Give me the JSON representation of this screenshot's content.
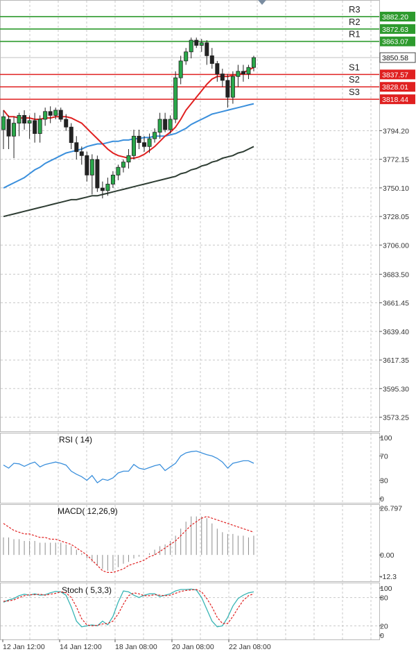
{
  "chart_data": [
    {
      "type": "candlestick",
      "panel": "price",
      "ylim": [
        3562.3,
        3895.0
      ],
      "y_ticks": [
        "3794.20",
        "3772.15",
        "3750.10",
        "3728.05",
        "3706.00",
        "3683.50",
        "3661.45",
        "3639.40",
        "3617.35",
        "3595.30",
        "3573.25"
      ],
      "x_ticks": [
        "12 Jan 12:00",
        "14 Jan 12:00",
        "18 Jan 08:00",
        "20 Jan 08:00",
        "22 Jan 08:00"
      ],
      "current_price": "3850.58",
      "pivot_levels": [
        {
          "name": "R3",
          "value": "3882.20",
          "color": "#2d9a2d"
        },
        {
          "name": "R2",
          "value": "3872.63",
          "color": "#2d9a2d"
        },
        {
          "name": "R1",
          "value": "3863.07",
          "color": "#2d9a2d"
        },
        {
          "name": "S1",
          "value": "3837.57",
          "color": "#e02020"
        },
        {
          "name": "S2",
          "value": "3828.01",
          "color": "#e02020"
        },
        {
          "name": "S3",
          "value": "3818.44",
          "color": "#e02020"
        }
      ],
      "candles": [
        {
          "o": 3795,
          "h": 3810,
          "l": 3780,
          "c": 3805
        },
        {
          "o": 3803,
          "h": 3806,
          "l": 3780,
          "c": 3790
        },
        {
          "o": 3790,
          "h": 3805,
          "l": 3773,
          "c": 3800
        },
        {
          "o": 3800,
          "h": 3808,
          "l": 3790,
          "c": 3806
        },
        {
          "o": 3806,
          "h": 3810,
          "l": 3795,
          "c": 3800
        },
        {
          "o": 3800,
          "h": 3806,
          "l": 3788,
          "c": 3802
        },
        {
          "o": 3802,
          "h": 3808,
          "l": 3785,
          "c": 3792
        },
        {
          "o": 3792,
          "h": 3806,
          "l": 3785,
          "c": 3803
        },
        {
          "o": 3803,
          "h": 3812,
          "l": 3798,
          "c": 3809
        },
        {
          "o": 3809,
          "h": 3813,
          "l": 3800,
          "c": 3806
        },
        {
          "o": 3806,
          "h": 3812,
          "l": 3803,
          "c": 3810
        },
        {
          "o": 3810,
          "h": 3812,
          "l": 3801,
          "c": 3803
        },
        {
          "o": 3803,
          "h": 3807,
          "l": 3794,
          "c": 3797
        },
        {
          "o": 3797,
          "h": 3800,
          "l": 3780,
          "c": 3785
        },
        {
          "o": 3785,
          "h": 3790,
          "l": 3772,
          "c": 3778
        },
        {
          "o": 3778,
          "h": 3782,
          "l": 3768,
          "c": 3775
        },
        {
          "o": 3775,
          "h": 3778,
          "l": 3755,
          "c": 3760
        },
        {
          "o": 3760,
          "h": 3776,
          "l": 3745,
          "c": 3772
        },
        {
          "o": 3772,
          "h": 3775,
          "l": 3747,
          "c": 3750
        },
        {
          "o": 3750,
          "h": 3755,
          "l": 3742,
          "c": 3748
        },
        {
          "o": 3748,
          "h": 3758,
          "l": 3744,
          "c": 3753
        },
        {
          "o": 3753,
          "h": 3763,
          "l": 3750,
          "c": 3760
        },
        {
          "o": 3760,
          "h": 3768,
          "l": 3756,
          "c": 3766
        },
        {
          "o": 3766,
          "h": 3772,
          "l": 3762,
          "c": 3770
        },
        {
          "o": 3770,
          "h": 3780,
          "l": 3765,
          "c": 3775
        },
        {
          "o": 3775,
          "h": 3795,
          "l": 3772,
          "c": 3790
        },
        {
          "o": 3790,
          "h": 3795,
          "l": 3780,
          "c": 3785
        },
        {
          "o": 3785,
          "h": 3790,
          "l": 3778,
          "c": 3782
        },
        {
          "o": 3782,
          "h": 3792,
          "l": 3777,
          "c": 3788
        },
        {
          "o": 3788,
          "h": 3796,
          "l": 3785,
          "c": 3793
        },
        {
          "o": 3793,
          "h": 3808,
          "l": 3788,
          "c": 3803
        },
        {
          "o": 3803,
          "h": 3808,
          "l": 3793,
          "c": 3795
        },
        {
          "o": 3795,
          "h": 3806,
          "l": 3792,
          "c": 3803
        },
        {
          "o": 3803,
          "h": 3840,
          "l": 3800,
          "c": 3835
        },
        {
          "o": 3835,
          "h": 3852,
          "l": 3830,
          "c": 3848
        },
        {
          "o": 3848,
          "h": 3858,
          "l": 3845,
          "c": 3855
        },
        {
          "o": 3855,
          "h": 3866,
          "l": 3850,
          "c": 3864
        },
        {
          "o": 3864,
          "h": 3866,
          "l": 3858,
          "c": 3860
        },
        {
          "o": 3860,
          "h": 3865,
          "l": 3855,
          "c": 3862
        },
        {
          "o": 3862,
          "h": 3864,
          "l": 3845,
          "c": 3852
        },
        {
          "o": 3852,
          "h": 3858,
          "l": 3842,
          "c": 3846
        },
        {
          "o": 3846,
          "h": 3848,
          "l": 3832,
          "c": 3838
        },
        {
          "o": 3838,
          "h": 3842,
          "l": 3828,
          "c": 3833
        },
        {
          "o": 3833,
          "h": 3838,
          "l": 3812,
          "c": 3820
        },
        {
          "o": 3820,
          "h": 3840,
          "l": 3815,
          "c": 3836
        },
        {
          "o": 3836,
          "h": 3845,
          "l": 3828,
          "c": 3840
        },
        {
          "o": 3840,
          "h": 3845,
          "l": 3832,
          "c": 3838
        },
        {
          "o": 3838,
          "h": 3845,
          "l": 3834,
          "c": 3843
        },
        {
          "o": 3843,
          "h": 3852,
          "l": 3840,
          "c": 3850.58
        }
      ],
      "ma_fast": {
        "color": "#e02020",
        "values": [
          3810,
          3805,
          3805,
          3804,
          3804,
          3804,
          3803,
          3803,
          3804,
          3804,
          3805,
          3805,
          3805,
          3804,
          3802,
          3800,
          3796,
          3792,
          3788,
          3784,
          3780,
          3777,
          3775,
          3774,
          3773,
          3773,
          3774,
          3776,
          3779,
          3782,
          3786,
          3790,
          3793,
          3797,
          3803,
          3810,
          3815,
          3820,
          3825,
          3830,
          3834,
          3836,
          3836,
          3836,
          3837,
          3837,
          3839,
          3841,
          3843
        ]
      },
      "ma_mid": {
        "color": "#3a8fdc",
        "values": [
          3750,
          3752,
          3754,
          3756,
          3758,
          3761,
          3764,
          3766,
          3769,
          3771,
          3773,
          3775,
          3777,
          3778,
          3779,
          3780,
          3782,
          3783,
          3784,
          3784,
          3785,
          3786,
          3786,
          3787,
          3787,
          3788,
          3788,
          3789,
          3789,
          3790,
          3790,
          3790,
          3791,
          3792,
          3794,
          3796,
          3799,
          3801,
          3803,
          3805,
          3807,
          3808,
          3809,
          3810,
          3811,
          3812,
          3813,
          3814,
          3815
        ]
      },
      "ma_slow": {
        "color": "#2e3d33",
        "values": [
          3728,
          3729,
          3730,
          3731,
          3732,
          3733,
          3734,
          3735,
          3736,
          3737,
          3738,
          3739,
          3740,
          3741,
          3741,
          3742,
          3743,
          3744,
          3744,
          3745,
          3746,
          3747,
          3748,
          3749,
          3750,
          3751,
          3752,
          3753,
          3754,
          3755,
          3756,
          3757,
          3758,
          3759,
          3761,
          3762,
          3764,
          3765,
          3767,
          3768,
          3770,
          3771,
          3773,
          3774,
          3775,
          3777,
          3778,
          3780,
          3782
        ]
      }
    },
    {
      "type": "line",
      "panel": "rsi",
      "label": "RSI ( 14)",
      "ylim": [
        0,
        100
      ],
      "y_ticks": [
        "100",
        "70",
        "30",
        "0"
      ],
      "color": "#3a8fdc",
      "values": [
        55,
        50,
        58,
        57,
        53,
        57,
        60,
        52,
        56,
        58,
        60,
        58,
        55,
        45,
        40,
        36,
        30,
        38,
        26,
        32,
        30,
        34,
        42,
        45,
        45,
        56,
        50,
        48,
        51,
        54,
        56,
        46,
        52,
        58,
        70,
        75,
        77,
        78,
        75,
        72,
        70,
        66,
        60,
        50,
        58,
        60,
        62,
        62,
        58
      ]
    },
    {
      "type": "bar+line",
      "panel": "macd",
      "label": "MACD( 12,26,9)",
      "ylim": [
        -15.0,
        29.0
      ],
      "y_ticks": [
        "26.797",
        "0.00",
        "-12.3"
      ],
      "hist_color": "#8c8c8c",
      "signal_color": "#e02020",
      "histogram": [
        10,
        10,
        9,
        9,
        8,
        8,
        8,
        7,
        7,
        7,
        7,
        7,
        6,
        5,
        3,
        1,
        -2,
        -4,
        -6,
        -8,
        -9,
        -9,
        -7,
        -5,
        -4,
        -2,
        -1,
        0,
        1,
        3,
        5,
        6,
        8,
        11,
        15,
        19,
        22,
        22,
        22,
        21,
        18,
        15,
        13,
        12,
        12,
        11,
        11,
        10,
        11
      ],
      "signal": [
        18,
        16,
        14,
        13,
        12,
        12,
        11,
        10,
        10,
        9,
        9,
        8,
        7,
        6,
        4,
        2,
        0,
        -3,
        -6,
        -9,
        -10,
        -10,
        -9,
        -8,
        -6,
        -5,
        -4,
        -3,
        -1,
        0,
        2,
        4,
        6,
        8,
        11,
        14,
        17,
        19,
        21,
        22,
        21,
        20,
        19,
        18,
        17,
        16,
        15,
        14,
        13
      ]
    },
    {
      "type": "line",
      "panel": "stoch",
      "label": "Stoch ( 5,3,3)",
      "ylim": [
        0,
        100
      ],
      "y_ticks": [
        "100",
        "80",
        "20",
        "0"
      ],
      "main_color": "#39b5b5",
      "signal_color": "#e02020",
      "main": [
        70,
        75,
        78,
        84,
        87,
        85,
        88,
        85,
        86,
        90,
        93,
        92,
        85,
        60,
        30,
        18,
        20,
        22,
        20,
        30,
        22,
        40,
        70,
        94,
        92,
        85,
        80,
        85,
        88,
        88,
        82,
        85,
        88,
        94,
        97,
        97,
        98,
        96,
        80,
        55,
        30,
        18,
        20,
        38,
        62,
        78,
        85,
        90,
        92
      ],
      "signal": [
        72,
        73,
        75,
        80,
        84,
        86,
        86,
        87,
        85,
        87,
        89,
        92,
        90,
        80,
        60,
        35,
        22,
        20,
        21,
        24,
        25,
        30,
        45,
        66,
        84,
        90,
        88,
        84,
        84,
        86,
        85,
        84,
        85,
        89,
        93,
        95,
        96,
        97,
        92,
        78,
        60,
        38,
        25,
        25,
        40,
        58,
        74,
        84,
        88
      ]
    }
  ]
}
